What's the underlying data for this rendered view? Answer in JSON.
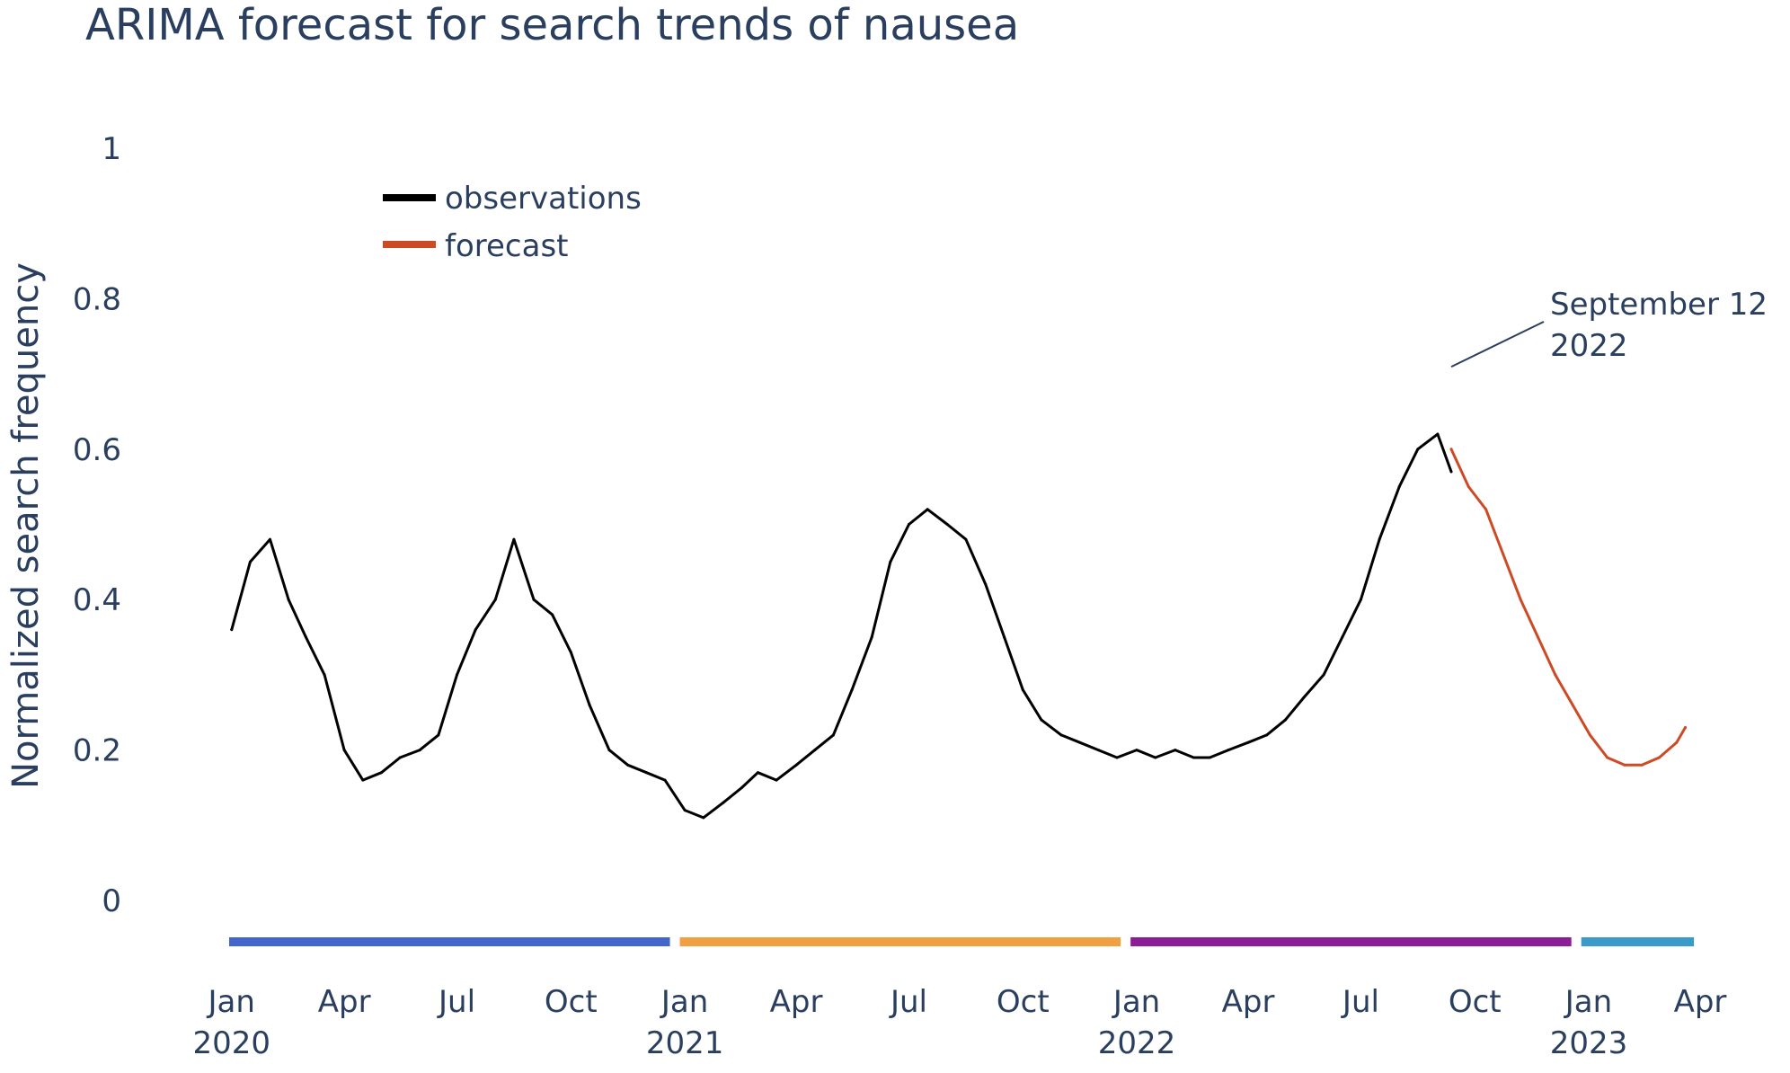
{
  "chart_data": {
    "type": "line",
    "title": "ARIMA forecast for search trends of nausea",
    "xlabel": "",
    "ylabel": "Normalized search frequency",
    "ylim": [
      0,
      1
    ],
    "xlim": [
      "2019-12-30",
      "2023-04-01"
    ],
    "grid": false,
    "legend_placement": "top-left",
    "y_ticks": [
      "0",
      "0.2",
      "0.4",
      "0.6",
      "0.8",
      "1"
    ],
    "x_ticks": [
      {
        "month": "Jan",
        "year": "2020",
        "date": "2020-01-01"
      },
      {
        "month": "Apr",
        "year": "",
        "date": "2020-04-01"
      },
      {
        "month": "Jul",
        "year": "",
        "date": "2020-07-01"
      },
      {
        "month": "Oct",
        "year": "",
        "date": "2020-10-01"
      },
      {
        "month": "Jan",
        "year": "2021",
        "date": "2021-01-01"
      },
      {
        "month": "Apr",
        "year": "",
        "date": "2021-04-01"
      },
      {
        "month": "Jul",
        "year": "",
        "date": "2021-07-01"
      },
      {
        "month": "Oct",
        "year": "",
        "date": "2021-10-01"
      },
      {
        "month": "Jan",
        "year": "2022",
        "date": "2022-01-01"
      },
      {
        "month": "Apr",
        "year": "",
        "date": "2022-04-01"
      },
      {
        "month": "Jul",
        "year": "",
        "date": "2022-07-01"
      },
      {
        "month": "Oct",
        "year": "",
        "date": "2022-10-01"
      },
      {
        "month": "Jan",
        "year": "2023",
        "date": "2023-01-01"
      },
      {
        "month": "Apr",
        "year": "",
        "date": "2023-04-01"
      }
    ],
    "series": [
      {
        "name": "observations",
        "color": "#000000",
        "x": [
          "2020-01-01",
          "2020-01-16",
          "2020-02-01",
          "2020-02-16",
          "2020-03-01",
          "2020-03-16",
          "2020-04-01",
          "2020-04-16",
          "2020-05-01",
          "2020-05-16",
          "2020-06-01",
          "2020-06-16",
          "2020-07-01",
          "2020-07-16",
          "2020-08-01",
          "2020-08-16",
          "2020-09-01",
          "2020-09-16",
          "2020-10-01",
          "2020-10-16",
          "2020-11-01",
          "2020-11-16",
          "2020-12-01",
          "2020-12-16",
          "2021-01-01",
          "2021-01-16",
          "2021-02-01",
          "2021-02-16",
          "2021-03-01",
          "2021-03-16",
          "2021-04-01",
          "2021-04-16",
          "2021-05-01",
          "2021-05-16",
          "2021-06-01",
          "2021-06-16",
          "2021-07-01",
          "2021-07-16",
          "2021-08-01",
          "2021-08-16",
          "2021-09-01",
          "2021-09-16",
          "2021-10-01",
          "2021-10-16",
          "2021-11-01",
          "2021-11-16",
          "2021-12-01",
          "2021-12-16",
          "2022-01-01",
          "2022-01-16",
          "2022-02-01",
          "2022-02-16",
          "2022-03-01",
          "2022-03-16",
          "2022-04-01",
          "2022-04-16",
          "2022-05-01",
          "2022-05-16",
          "2022-06-01",
          "2022-06-16",
          "2022-07-01",
          "2022-07-16",
          "2022-08-01",
          "2022-08-16",
          "2022-09-01",
          "2022-09-12"
        ],
        "values": [
          0.36,
          0.45,
          0.48,
          0.4,
          0.35,
          0.3,
          0.2,
          0.16,
          0.17,
          0.19,
          0.2,
          0.22,
          0.3,
          0.36,
          0.4,
          0.48,
          0.4,
          0.38,
          0.33,
          0.26,
          0.2,
          0.18,
          0.17,
          0.16,
          0.12,
          0.11,
          0.13,
          0.15,
          0.17,
          0.16,
          0.18,
          0.2,
          0.22,
          0.28,
          0.35,
          0.45,
          0.5,
          0.52,
          0.5,
          0.48,
          0.42,
          0.35,
          0.28,
          0.24,
          0.22,
          0.21,
          0.2,
          0.19,
          0.2,
          0.19,
          0.2,
          0.19,
          0.19,
          0.2,
          0.21,
          0.22,
          0.24,
          0.27,
          0.3,
          0.35,
          0.4,
          0.48,
          0.55,
          0.6,
          0.62,
          0.57
        ]
      },
      {
        "name": "forecast",
        "color": "#cd4a24",
        "x": [
          "2022-09-12",
          "2022-09-26",
          "2022-10-10",
          "2022-10-24",
          "2022-11-07",
          "2022-11-21",
          "2022-12-05",
          "2022-12-19",
          "2023-01-02",
          "2023-01-16",
          "2023-01-30",
          "2023-02-13",
          "2023-02-27",
          "2023-03-13",
          "2023-03-20"
        ],
        "values": [
          0.6,
          0.55,
          0.52,
          0.46,
          0.4,
          0.35,
          0.3,
          0.26,
          0.22,
          0.19,
          0.18,
          0.18,
          0.19,
          0.21,
          0.23
        ]
      }
    ],
    "annotations": [
      {
        "text_line1": "September 12",
        "text_line2": "2022",
        "x": "2022-09-12",
        "y": 0.7
      }
    ],
    "period_bars": [
      {
        "label": "2020",
        "start": "2019-12-30",
        "end": "2020-12-20",
        "color": "#4466cc"
      },
      {
        "label": "2021",
        "start": "2020-12-28",
        "end": "2021-12-19",
        "color": "#f0a040"
      },
      {
        "label": "2022",
        "start": "2021-12-27",
        "end": "2022-12-18",
        "color": "#8c1d96"
      },
      {
        "label": "2023",
        "start": "2022-12-26",
        "end": "2023-03-27",
        "color": "#3a9bc8"
      }
    ]
  }
}
